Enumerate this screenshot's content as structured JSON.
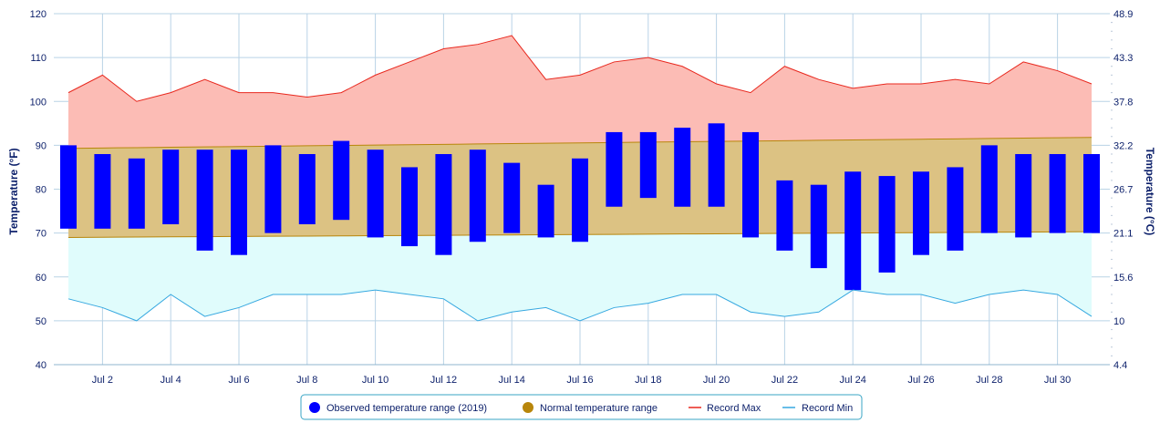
{
  "chart_data": {
    "type": "range-bar-with-areas",
    "y_left_label": "Temperature (°F)",
    "y_right_label": "Temperature (°C)",
    "ylim": [
      40,
      120
    ],
    "xlim": [
      1,
      31
    ],
    "y_left_ticks": [
      40,
      50,
      60,
      70,
      80,
      90,
      100,
      110,
      120
    ],
    "y_right_ticks": [
      "4.4",
      "10",
      "15.6",
      "21.1",
      "26.7",
      "32.2",
      "37.8",
      "43.3",
      "48.9"
    ],
    "x_tick_days": [
      2,
      4,
      6,
      8,
      10,
      12,
      14,
      16,
      18,
      20,
      22,
      24,
      26,
      28,
      30
    ],
    "x_tick_labels": [
      "Jul 2",
      "Jul 4",
      "Jul 6",
      "Jul 8",
      "Jul 10",
      "Jul 12",
      "Jul 14",
      "Jul 16",
      "Jul 18",
      "Jul 20",
      "Jul 22",
      "Jul 24",
      "Jul 26",
      "Jul 28",
      "Jul 30"
    ],
    "days": [
      1,
      2,
      3,
      4,
      5,
      6,
      7,
      8,
      9,
      10,
      11,
      12,
      13,
      14,
      15,
      16,
      17,
      18,
      19,
      20,
      21,
      22,
      23,
      24,
      25,
      26,
      27,
      28,
      29,
      30,
      31
    ],
    "observed_low": [
      71,
      71,
      71,
      72,
      66,
      65,
      70,
      72,
      73,
      69,
      67,
      65,
      68,
      70,
      69,
      68,
      76,
      78,
      76,
      76,
      69,
      66,
      62,
      57,
      61,
      65,
      66,
      70,
      69,
      70,
      70
    ],
    "observed_high": [
      90,
      88,
      87,
      89,
      89,
      89,
      90,
      88,
      91,
      89,
      85,
      88,
      89,
      86,
      81,
      87,
      93,
      93,
      94,
      95,
      93,
      82,
      81,
      84,
      83,
      84,
      85,
      90,
      88,
      88,
      88
    ],
    "normal_low_start": 69,
    "normal_low_end": 70.3,
    "normal_high_start": 89.3,
    "normal_high_end": 91.8,
    "record_max": [
      102,
      106,
      100,
      102,
      105,
      102,
      102,
      101,
      102,
      106,
      109,
      112,
      113,
      115,
      105,
      106,
      109,
      110,
      108,
      104,
      102,
      108,
      105,
      103,
      104,
      104,
      105,
      104,
      109,
      107,
      104
    ],
    "record_min": [
      55,
      53,
      50,
      56,
      51,
      53,
      56,
      56,
      56,
      57,
      56,
      55,
      50,
      52,
      53,
      50,
      53,
      54,
      56,
      56,
      52,
      51,
      52,
      57,
      56,
      56,
      54,
      56,
      57,
      56,
      51
    ],
    "series": [
      {
        "name": "Observed temperature range (2019)",
        "color": "#0000ff"
      },
      {
        "name": "Normal temperature range",
        "color": "#b8860b"
      },
      {
        "name": "Record Max",
        "color": "#e8281e"
      },
      {
        "name": "Record Min",
        "color": "#36a8e0"
      }
    ],
    "legend_position": "bottom-center"
  }
}
